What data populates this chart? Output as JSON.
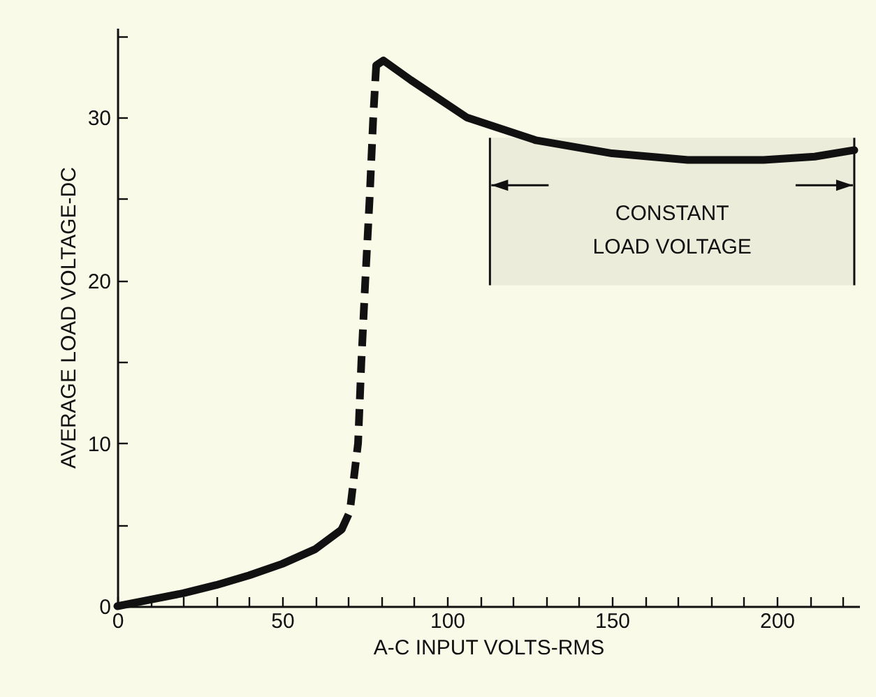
{
  "chart_data": {
    "type": "line",
    "xlabel": "A-C INPUT VOLTS-RMS",
    "ylabel": "AVERAGE LOAD VOLTAGE-DC",
    "xlim": [
      0,
      225
    ],
    "ylim": [
      0,
      35.5
    ],
    "xticks": [
      0,
      {
        "value": 10,
        "label": null
      },
      {
        "value": 20,
        "label": null
      },
      {
        "value": 30,
        "label": null
      },
      {
        "value": 40,
        "label": null
      },
      50,
      {
        "value": 60,
        "label": null
      },
      {
        "value": 70,
        "label": null
      },
      {
        "value": 80,
        "label": null
      },
      {
        "value": 90,
        "label": null
      },
      100,
      {
        "value": 110,
        "label": null
      },
      {
        "value": 120,
        "label": null
      },
      {
        "value": 130,
        "label": null
      },
      {
        "value": 140,
        "label": null
      },
      150,
      {
        "value": 160,
        "label": null
      },
      {
        "value": 170,
        "label": null
      },
      {
        "value": 180,
        "label": null
      },
      {
        "value": 190,
        "label": null
      },
      200,
      {
        "value": 210,
        "label": null
      },
      {
        "value": 220,
        "label": null
      }
    ],
    "yticks": [
      0,
      {
        "value": 5,
        "label": null
      },
      10,
      {
        "value": 15,
        "label": null
      },
      20,
      {
        "value": 25,
        "label": null
      },
      30,
      {
        "value": 35,
        "label": null
      }
    ],
    "line_style": "solid",
    "series": [
      {
        "color": "#111111",
        "x": [
          0,
          10,
          20,
          30,
          40,
          50,
          60,
          68
        ],
        "values": [
          0,
          0.4,
          0.8,
          1.3,
          1.9,
          2.6,
          3.5,
          4.7
        ]
      },
      {
        "color": "#111111",
        "line_style": "dashed",
        "x": [
          68,
          70.5,
          73,
          74,
          75.2,
          76.5,
          77.6,
          78.5
        ],
        "values": [
          4.7,
          5.8,
          10,
          15,
          20,
          25,
          30,
          33.2
        ]
      },
      {
        "color": "#111111",
        "x": [
          78.5,
          80.7,
          89,
          106,
          127,
          150,
          173,
          196,
          211.5,
          223.5
        ],
        "values": [
          33.2,
          33.5,
          32.3,
          30,
          28.6,
          27.8,
          27.4,
          27.4,
          27.6,
          28
        ]
      }
    ],
    "bands": [
      {
        "axis": "x",
        "from": 113,
        "to": 223.5,
        "label": "CONSTANT LOAD VOLTAGE",
        "color": "#111111"
      }
    ]
  }
}
